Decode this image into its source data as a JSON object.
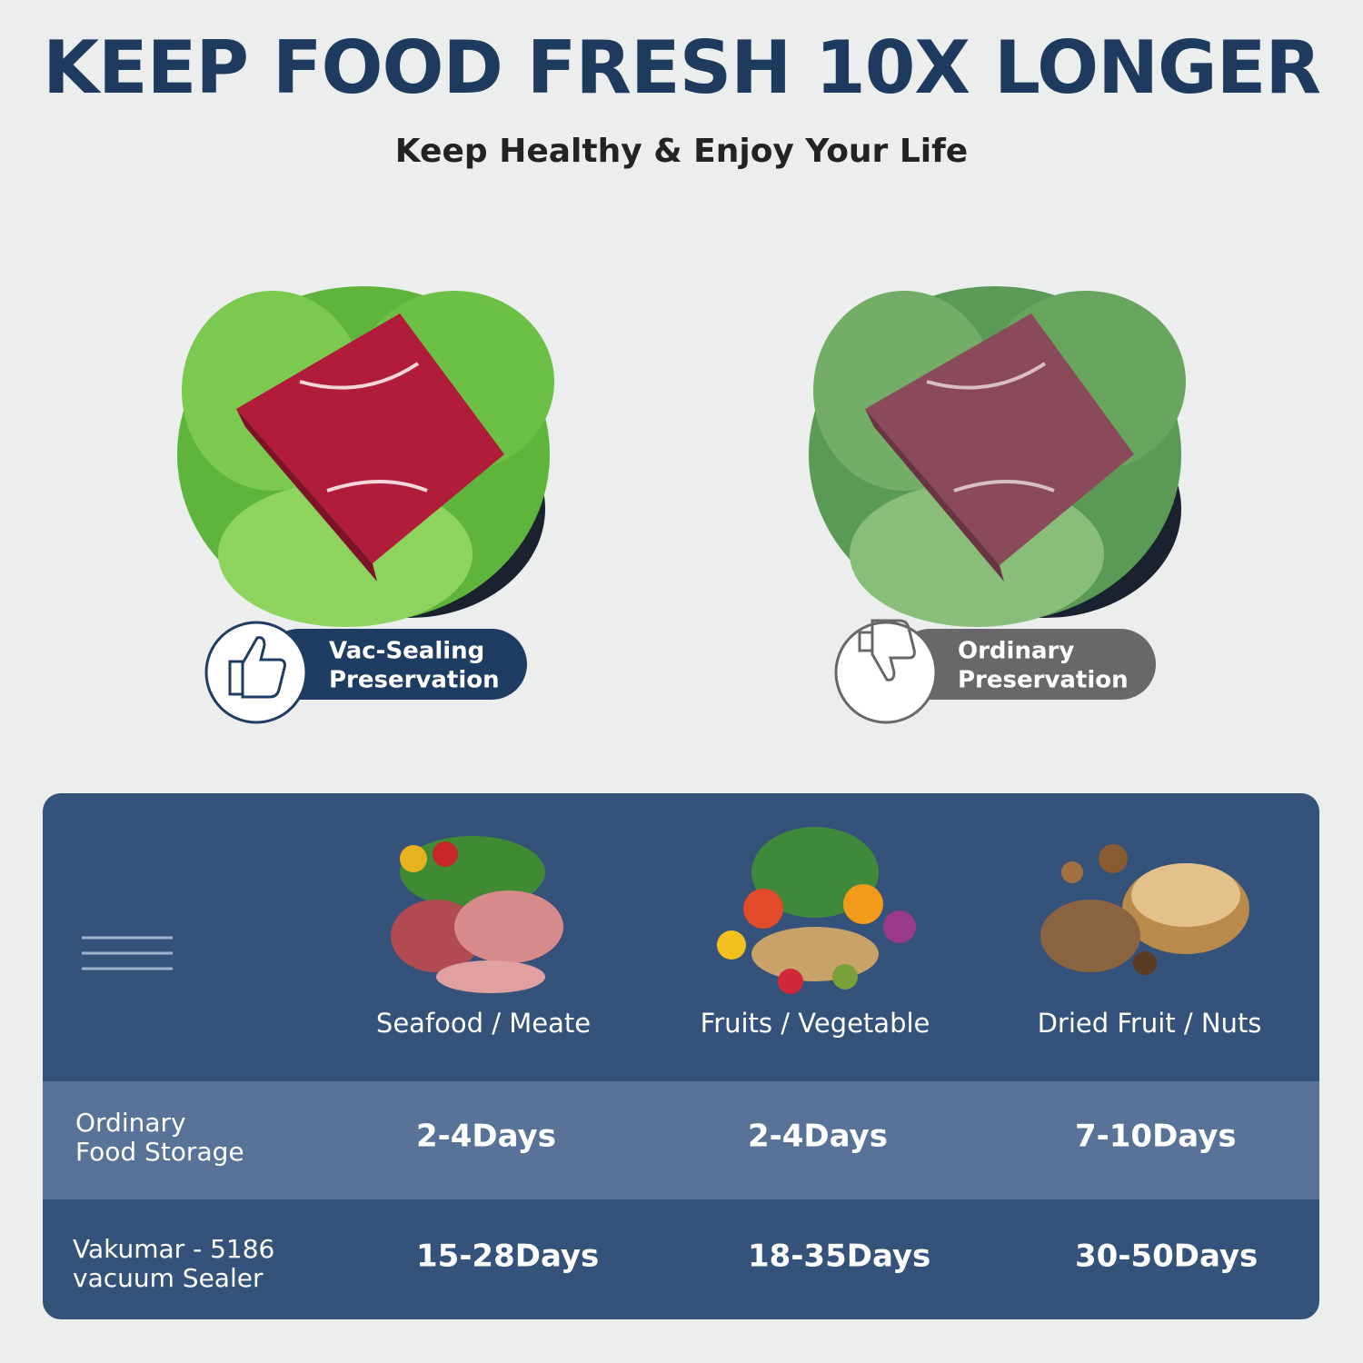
{
  "header": {
    "title": "KEEP FOOD FRESH 10X LONGER",
    "subtitle": "Keep Healthy & Enjoy Your Life"
  },
  "comparison": [
    {
      "label": [
        "Vac-Sealing",
        "Preservation"
      ]
    },
    {
      "label": [
        "Ordinary",
        "Preservation"
      ]
    }
  ],
  "table": {
    "columns": [
      "Seafood / Meate",
      "Fruits / Vegetable",
      "Dried Fruit / Nuts"
    ],
    "rows": [
      {
        "label": [
          "Ordinary",
          "Food Storage"
        ],
        "cells": [
          "2-4Days",
          "2-4Days",
          "7-10Days"
        ]
      },
      {
        "label": [
          "Vakumar - 5186",
          "vacuum Sealer"
        ],
        "cells": [
          "15-28Days",
          "18-35Days",
          "30-50Days"
        ]
      }
    ]
  }
}
